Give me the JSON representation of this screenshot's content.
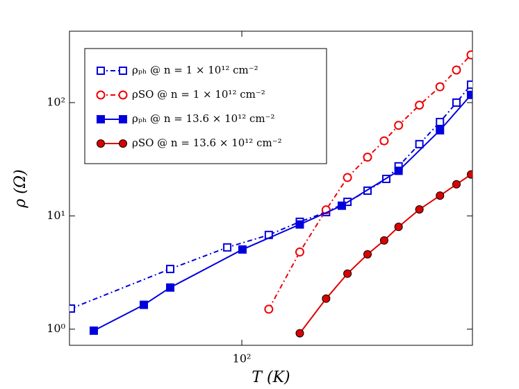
{
  "chart_data": {
    "type": "line",
    "x_label": "T (K)",
    "y_label": "ρ (Ω)",
    "log_x": true,
    "log_y": true,
    "xlim": [
      44,
      300
    ],
    "ylim": [
      0.72,
      427
    ],
    "xticks": [
      {
        "value": 100,
        "label": "10²"
      }
    ],
    "yticks": [
      {
        "value": 1,
        "label": "10⁰"
      },
      {
        "value": 10,
        "label": "10¹"
      },
      {
        "value": 100,
        "label": "10²"
      }
    ],
    "legend": "upper left",
    "series": [
      {
        "name": "ρₚₕ @ n = 1 × 10¹² cm⁻²",
        "color": "#0000dd",
        "marker": "square",
        "filled": false,
        "linestyle": "dashdot",
        "x": [
          44.3,
          71.1,
          93.3,
          113.7,
          131.8,
          149.4,
          165.4,
          182,
          199,
          211,
          233,
          257,
          278,
          298
        ],
        "values": [
          1.52,
          3.4,
          5.27,
          6.79,
          8.87,
          10.8,
          13.3,
          16.7,
          21.2,
          27.4,
          43,
          67.4,
          100,
          144
        ]
      },
      {
        "name": "ρSO @ n = 1 × 10¹² cm⁻²",
        "color": "#ee0000",
        "marker": "circle",
        "filled": false,
        "linestyle": "dashdot",
        "x": [
          113.7,
          131.8,
          149.4,
          165.4,
          182,
          197,
          211,
          233,
          257,
          278,
          298
        ],
        "values": [
          1.5,
          4.8,
          11.3,
          21.8,
          33,
          46,
          63,
          95,
          138,
          194,
          264
        ]
      },
      {
        "name": "ρₚₕ @ n = 13.6 × 10¹² cm⁻²",
        "color": "#0000dd",
        "marker": "square",
        "filled": true,
        "linestyle": "solid",
        "x": [
          49.4,
          62.7,
          71.1,
          100.3,
          131.8,
          161,
          211,
          257,
          298
        ],
        "values": [
          0.97,
          1.64,
          2.33,
          5.05,
          8.4,
          12.3,
          25,
          57,
          117
        ]
      },
      {
        "name": "ρSO @ n = 13.6 × 10¹² cm⁻²",
        "color": "#dd0000",
        "marker": "circle",
        "filled": true,
        "linestyle": "solid",
        "x": [
          131.8,
          149.4,
          165.4,
          182,
          197,
          211,
          233,
          257,
          278,
          298
        ],
        "values": [
          0.92,
          1.86,
          3.09,
          4.58,
          6.07,
          8.0,
          11.4,
          15.1,
          19,
          23.2
        ]
      }
    ]
  }
}
